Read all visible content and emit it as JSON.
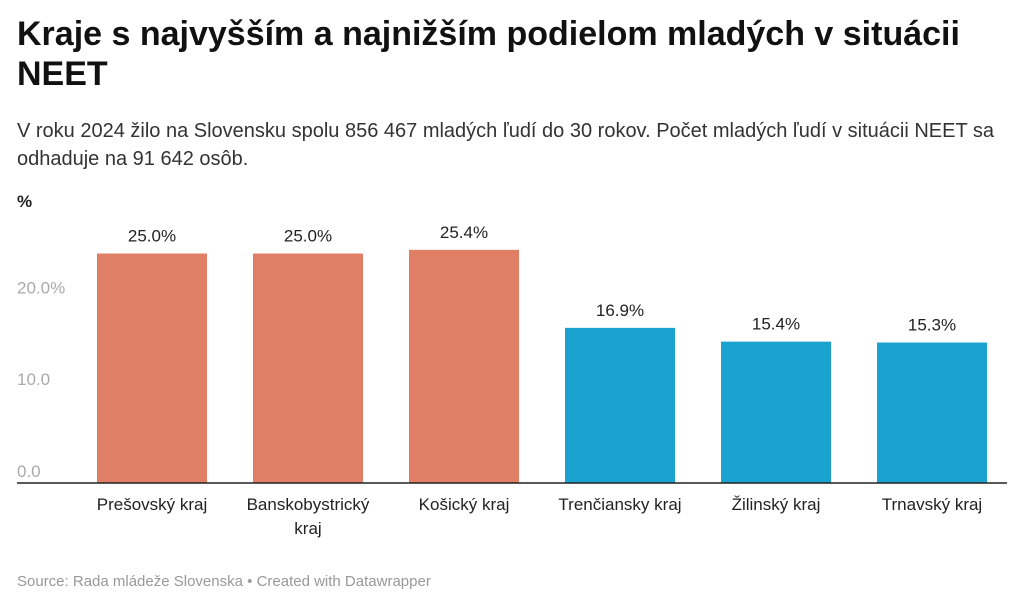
{
  "title": "Kraje s najvyšším a najnižším podielom mladých v situácii NEET",
  "subtitle": "V roku 2024 žilo na Slovensku spolu 856 467 mladých ľudí do 30 rokov. Počet mladých ľudí v situácii NEET sa odhaduje na 91 642 osôb.",
  "footer": {
    "source": "Source: Rada mládeže Slovenska",
    "separator": " • ",
    "credit": "Created with Datawrapper"
  },
  "colors": {
    "highest": "#E07F66",
    "lowest": "#1AA3CE",
    "axis": "#222222",
    "tick_text": "#AAAAAA"
  },
  "chart_data": {
    "type": "bar",
    "title": "Kraje s najvyšším a najnižším podielom mladých v situácii NEET",
    "ylabel": "%",
    "xlabel": "",
    "ylim": [
      0,
      28
    ],
    "yticks": [
      0,
      10,
      20
    ],
    "ytick_labels": [
      "0.0",
      "10.0",
      "20.0%"
    ],
    "grid": false,
    "categories": [
      [
        "Prešovský kraj"
      ],
      [
        "Banskobystrický",
        "kraj"
      ],
      [
        "Košický kraj"
      ],
      [
        "Trenčiansky kraj"
      ],
      [
        "Žilinský kraj"
      ],
      [
        "Trnavský kraj"
      ]
    ],
    "values": [
      25.0,
      25.0,
      25.4,
      16.9,
      15.4,
      15.3
    ],
    "value_labels": [
      "25.0%",
      "25.0%",
      "25.4%",
      "16.9%",
      "15.4%",
      "15.3%"
    ],
    "groups": [
      "highest",
      "highest",
      "highest",
      "lowest",
      "lowest",
      "lowest"
    ]
  }
}
